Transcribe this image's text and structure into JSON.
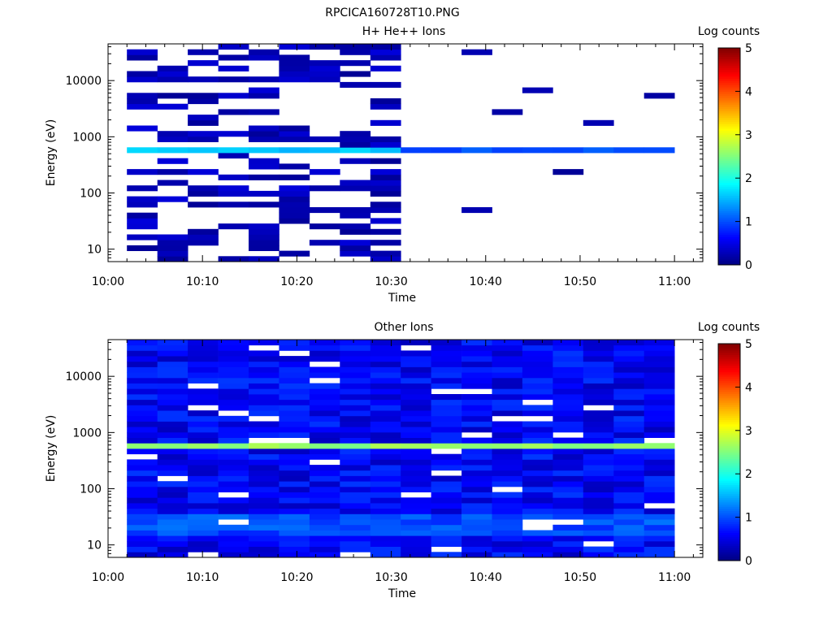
{
  "page_title": "RPCICA160728T10.PNG",
  "chart_data": [
    {
      "type": "heatmap",
      "title": "H+ He++ Ions",
      "xlabel": "Time",
      "ylabel": "Energy (eV)",
      "x_ticks": [
        "10:00",
        "10:10",
        "10:20",
        "10:30",
        "10:40",
        "10:50",
        "11:00"
      ],
      "y_ticks": [
        "10",
        "100",
        "1000",
        "10000"
      ],
      "y_scale": "log",
      "y_range_eV": [
        6,
        45000
      ],
      "x_range": [
        "10:00",
        "11:03"
      ],
      "data_range": [
        "10:02",
        "11:00"
      ],
      "time_bins": 18,
      "colorbar_label": "Log counts",
      "colorbar_ticks": [
        "0",
        "1",
        "2",
        "3",
        "4",
        "5"
      ],
      "colorbar_range": [
        0,
        5
      ],
      "description_of_data": {
        "dense_until": "10:31",
        "persistent_band_eV": [
          550,
          700
        ],
        "persistent_band_log_counts": 1.6,
        "sparse_after": "10:31",
        "background_log_counts": 0.1
      }
    },
    {
      "type": "heatmap",
      "title": "Other Ions",
      "xlabel": "Time",
      "ylabel": "Energy (eV)",
      "x_ticks": [
        "10:00",
        "10:10",
        "10:20",
        "10:30",
        "10:40",
        "10:50",
        "11:00"
      ],
      "y_ticks": [
        "10",
        "100",
        "1000",
        "10000"
      ],
      "y_scale": "log",
      "y_range_eV": [
        6,
        45000
      ],
      "x_range": [
        "10:00",
        "11:03"
      ],
      "data_range": [
        "10:02",
        "11:00"
      ],
      "time_bins": 18,
      "colorbar_label": "Log counts",
      "colorbar_ticks": [
        "0",
        "1",
        "2",
        "3",
        "4",
        "5"
      ],
      "colorbar_range": [
        0,
        5
      ],
      "description_of_data": {
        "persistent_band_eV": [
          540,
          720
        ],
        "persistent_band_log_counts": 2.6,
        "low_energy_enhancement_eV": [
          15,
          35
        ],
        "low_energy_log_counts": 1.0,
        "background_log_counts": 0.6
      }
    }
  ]
}
